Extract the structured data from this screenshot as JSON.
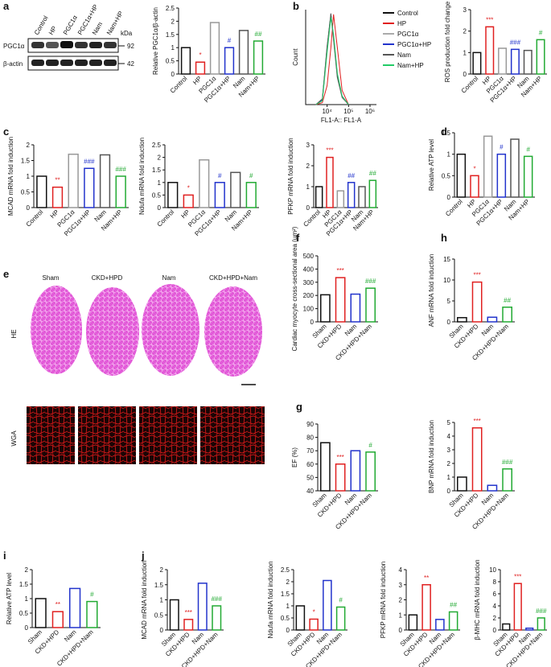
{
  "figure": {
    "panel_labels": [
      "a",
      "b",
      "c",
      "d",
      "e",
      "f",
      "g",
      "h",
      "i",
      "j"
    ],
    "blot": {
      "lanes": [
        "Control",
        "HP",
        "PGC1α",
        "PGC1α+HP",
        "Nam",
        "Nam+HP"
      ],
      "unit": "kDa",
      "rows": [
        {
          "name": "PGC1α",
          "size": "92"
        },
        {
          "name": "β-actin",
          "size": "42"
        }
      ]
    },
    "tissue": {
      "columns": [
        "Sham",
        "CKD+HPD",
        "Nam",
        "CKD+HPD+Nam"
      ],
      "rows": [
        "HE",
        "WGA"
      ]
    }
  },
  "chart_data": [
    {
      "type": "bar",
      "y_label": "Relative PGC1α/β-actin",
      "categories": [
        "Control",
        "HP",
        "PGC1α",
        "PGC1α+HP",
        "Nam",
        "Nam+HP"
      ],
      "values": [
        1.0,
        0.45,
        1.95,
        1.0,
        1.65,
        1.25
      ],
      "annotations": [
        null,
        "*",
        null,
        "#",
        null,
        "##"
      ],
      "colors": [
        "#111",
        "#e02020",
        "#999",
        "#2233cc",
        "#555",
        "#22aa33"
      ],
      "ylim": [
        0,
        2.5
      ],
      "yticks": [
        0,
        0.5,
        1.0,
        1.5,
        2.0,
        2.5
      ]
    },
    {
      "type": "line",
      "x_label": "FL1-A:: FL1-A",
      "y_label": "Count",
      "log_x": true,
      "xlim": [
        1000,
        2000000
      ],
      "xticks": [
        {
          "value": 10000,
          "label": "10⁴"
        },
        {
          "value": 100000,
          "label": "10⁵"
        },
        {
          "value": 1000000,
          "label": "10⁶"
        }
      ],
      "ylim": [
        0,
        100
      ],
      "x": [
        3000,
        6000,
        10000,
        15000,
        20000,
        30000,
        50000,
        100000
      ],
      "series": [
        {
          "name": "Control",
          "color": "#111",
          "values": [
            0,
            5,
            60,
            95,
            70,
            30,
            8,
            0
          ]
        },
        {
          "name": "HP",
          "color": "#e02020",
          "values": [
            0,
            2,
            20,
            60,
            95,
            60,
            15,
            0
          ]
        },
        {
          "name": "PGC1α",
          "color": "#aaa",
          "values": [
            0,
            6,
            62,
            93,
            68,
            28,
            7,
            0
          ]
        },
        {
          "name": "PGC1α+HP",
          "color": "#2233cc",
          "values": [
            0,
            5,
            58,
            94,
            72,
            31,
            9,
            0
          ]
        },
        {
          "name": "Nam",
          "color": "#555",
          "values": [
            0,
            6,
            61,
            96,
            69,
            29,
            8,
            0
          ]
        },
        {
          "name": "Nam+HP",
          "color": "#22cc66",
          "values": [
            0,
            4,
            55,
            92,
            74,
            33,
            9,
            0
          ]
        }
      ]
    },
    {
      "type": "bar",
      "y_label": "ROS production fold change",
      "categories": [
        "Control",
        "HP",
        "PGC1α",
        "PGC1α+HP",
        "Nam",
        "Nam+HP"
      ],
      "values": [
        1.0,
        2.2,
        1.2,
        1.15,
        1.1,
        1.6
      ],
      "annotations": [
        null,
        "***",
        null,
        "###",
        null,
        "#"
      ],
      "colors": [
        "#111",
        "#e02020",
        "#999",
        "#2233cc",
        "#555",
        "#22aa33"
      ],
      "ylim": [
        0,
        3
      ],
      "yticks": [
        0,
        1,
        2,
        3
      ]
    },
    {
      "type": "bar",
      "y_label": "MCAD mRNA fold induction",
      "categories": [
        "Control",
        "HP",
        "PGC1α",
        "PGC1α+HP",
        "Nam",
        "Nam+HP"
      ],
      "values": [
        1.0,
        0.65,
        1.7,
        1.25,
        1.68,
        1.0
      ],
      "annotations": [
        null,
        "**",
        null,
        "###",
        null,
        "###"
      ],
      "colors": [
        "#111",
        "#e02020",
        "#999",
        "#2233cc",
        "#555",
        "#22aa33"
      ],
      "ylim": [
        0,
        2
      ],
      "yticks": [
        0,
        0.5,
        1.0,
        1.5,
        2.0
      ]
    },
    {
      "type": "bar",
      "y_label": "Ndufa mRNA fold induction",
      "categories": [
        "Control",
        "HP",
        "PGC1α",
        "PGC1α+HP",
        "Nam",
        "Nam+HP"
      ],
      "values": [
        1.0,
        0.5,
        1.9,
        1.0,
        1.4,
        1.0
      ],
      "annotations": [
        null,
        "*",
        null,
        "#",
        null,
        "#"
      ],
      "colors": [
        "#111",
        "#e02020",
        "#999",
        "#2233cc",
        "#555",
        "#22aa33"
      ],
      "ylim": [
        0,
        2.5
      ],
      "yticks": [
        0,
        0.5,
        1.0,
        1.5,
        2.0,
        2.5
      ]
    },
    {
      "type": "bar",
      "y_label": "PFKP mRNA fold induction",
      "categories": [
        "Control",
        "HP",
        "PGC1α",
        "PGC1α+HP",
        "Nam",
        "Nam+HP"
      ],
      "values": [
        1.0,
        2.4,
        0.8,
        1.2,
        1.0,
        1.3
      ],
      "annotations": [
        null,
        "***",
        null,
        "##",
        null,
        "##"
      ],
      "colors": [
        "#111",
        "#e02020",
        "#999",
        "#2233cc",
        "#555",
        "#22aa33"
      ],
      "ylim": [
        0,
        3
      ],
      "yticks": [
        0,
        1,
        2,
        3
      ]
    },
    {
      "type": "bar",
      "y_label": "Relative ATP level",
      "categories": [
        "Control",
        "HP",
        "PGC1α",
        "PGC1α+HP",
        "Nam",
        "Nam+HP"
      ],
      "values": [
        1.0,
        0.5,
        1.42,
        1.0,
        1.35,
        0.95
      ],
      "annotations": [
        null,
        "*",
        null,
        "#",
        null,
        "#"
      ],
      "colors": [
        "#111",
        "#e02020",
        "#999",
        "#2233cc",
        "#555",
        "#22aa33"
      ],
      "ylim": [
        0,
        1.5
      ],
      "yticks": [
        0,
        0.5,
        1.0,
        1.5
      ]
    },
    {
      "type": "bar",
      "y_label": "Cardiac myocyte cross-sectional area (μm²)",
      "categories": [
        "Sham",
        "CKD+HPD",
        "Nam",
        "CKD+HPD+Nam"
      ],
      "values": [
        205,
        335,
        210,
        255
      ],
      "annotations": [
        null,
        "***",
        null,
        "###"
      ],
      "colors": [
        "#111",
        "#e02020",
        "#2233cc",
        "#22aa33"
      ],
      "ylim": [
        0,
        500
      ],
      "yticks": [
        0,
        100,
        200,
        300,
        400,
        500
      ]
    },
    {
      "type": "bar",
      "y_label": "ANF mRNA fold induction",
      "categories": [
        "Sham",
        "CKD+HPD",
        "Nam",
        "CKD+HPD+Nam"
      ],
      "values": [
        1.0,
        9.5,
        1.1,
        3.5
      ],
      "annotations": [
        null,
        "***",
        null,
        "##"
      ],
      "colors": [
        "#111",
        "#e02020",
        "#2233cc",
        "#22aa33"
      ],
      "ylim": [
        0,
        15
      ],
      "yticks": [
        0,
        5,
        10,
        15
      ]
    },
    {
      "type": "bar",
      "y_label": "EF (%)",
      "categories": [
        "Sham",
        "CKD+HPD",
        "Nam",
        "CKD+HPD+Nam"
      ],
      "values": [
        76,
        60,
        70,
        69
      ],
      "annotations": [
        null,
        "***",
        null,
        "#"
      ],
      "colors": [
        "#111",
        "#e02020",
        "#2233cc",
        "#22aa33"
      ],
      "ylim": [
        40,
        90
      ],
      "yticks": [
        40,
        50,
        60,
        70,
        80,
        90
      ]
    },
    {
      "type": "bar",
      "y_label": "BNP mRNA fold induction",
      "categories": [
        "Sham",
        "CKD+HPD",
        "Nam",
        "CKD+HPD+Nam"
      ],
      "values": [
        1.0,
        4.6,
        0.4,
        1.6
      ],
      "annotations": [
        null,
        "***",
        null,
        "###"
      ],
      "colors": [
        "#111",
        "#e02020",
        "#2233cc",
        "#22aa33"
      ],
      "ylim": [
        0,
        5
      ],
      "yticks": [
        0,
        1,
        2,
        3,
        4,
        5
      ]
    },
    {
      "type": "bar",
      "y_label": "Relative ATP level",
      "categories": [
        "Sham",
        "CKD+HPD",
        "Nam",
        "CKD+HPD+Nam"
      ],
      "values": [
        1.0,
        0.55,
        1.35,
        0.9
      ],
      "annotations": [
        null,
        "**",
        null,
        "#"
      ],
      "colors": [
        "#111",
        "#e02020",
        "#2233cc",
        "#22aa33"
      ],
      "ylim": [
        0,
        2
      ],
      "yticks": [
        0,
        0.5,
        1.0,
        1.5,
        2.0
      ]
    },
    {
      "type": "bar",
      "y_label": "MCAD mRNA fold induction",
      "categories": [
        "Sham",
        "CKD+HPD",
        "Nam",
        "CKD+HPD+Nam"
      ],
      "values": [
        1.0,
        0.35,
        1.55,
        0.8
      ],
      "annotations": [
        null,
        "***",
        null,
        "###"
      ],
      "colors": [
        "#111",
        "#e02020",
        "#2233cc",
        "#22aa33"
      ],
      "ylim": [
        0,
        2
      ],
      "yticks": [
        0,
        0.5,
        1.0,
        1.5,
        2.0
      ]
    },
    {
      "type": "bar",
      "y_label": "Ndufa mRNA fold induction",
      "categories": [
        "Sham",
        "CKD+HPD",
        "Nam",
        "CKD+HPD+Nam"
      ],
      "values": [
        1.0,
        0.45,
        2.05,
        0.95
      ],
      "annotations": [
        null,
        "*",
        null,
        "#"
      ],
      "colors": [
        "#111",
        "#e02020",
        "#2233cc",
        "#22aa33"
      ],
      "ylim": [
        0,
        2.5
      ],
      "yticks": [
        0,
        0.5,
        1.0,
        1.5,
        2.0,
        2.5
      ]
    },
    {
      "type": "bar",
      "y_label": "PFKP mRNA fold induction",
      "categories": [
        "Sham",
        "CKD+HPD",
        "Nam",
        "CKD+HPD+Nam"
      ],
      "values": [
        1.0,
        3.0,
        0.7,
        1.2
      ],
      "annotations": [
        null,
        "**",
        null,
        "##"
      ],
      "colors": [
        "#111",
        "#e02020",
        "#2233cc",
        "#22aa33"
      ],
      "ylim": [
        0,
        4
      ],
      "yticks": [
        0,
        1,
        2,
        3,
        4
      ]
    },
    {
      "type": "bar",
      "y_label": "β-MHC mRNA fold induction",
      "categories": [
        "Sham",
        "CKD+HPD",
        "Nam",
        "CKD+HPD+Nam"
      ],
      "values": [
        1.0,
        7.7,
        0.3,
        2.0
      ],
      "annotations": [
        null,
        "***",
        null,
        "###"
      ],
      "colors": [
        "#111",
        "#e02020",
        "#2233cc",
        "#22aa33"
      ],
      "ylim": [
        0,
        10
      ],
      "yticks": [
        0,
        2,
        4,
        6,
        8,
        10
      ]
    }
  ]
}
